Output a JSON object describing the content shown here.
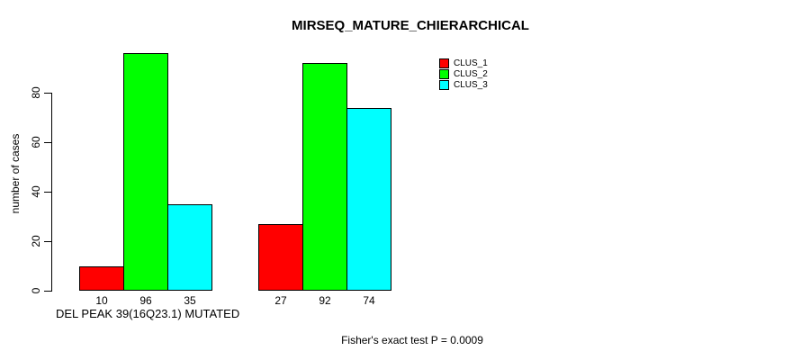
{
  "chart_data": {
    "type": "bar",
    "title": "MIRSEQ_MATURE_CHIERARCHICAL",
    "ylabel": "number of cases",
    "xlabel": "DEL PEAK 39(16Q23.1) MUTATED",
    "annotation": "Fisher's exact test P = 0.0009",
    "yticks": [
      0,
      20,
      40,
      60,
      80
    ],
    "ylim": [
      0,
      96
    ],
    "grid": false,
    "legend_position": "top-right",
    "series": [
      {
        "name": "CLUS_1",
        "color": "#ff0000",
        "values": [
          10,
          27
        ]
      },
      {
        "name": "CLUS_2",
        "color": "#00ff00",
        "values": [
          96,
          92
        ]
      },
      {
        "name": "CLUS_3",
        "color": "#00ffff",
        "values": [
          35,
          74
        ]
      }
    ],
    "bar_labels": [
      [
        "10",
        "96",
        "35"
      ],
      [
        "27",
        "92",
        "74"
      ]
    ],
    "colors": {
      "bar_border": "#000000",
      "text": "#000000",
      "background": "#ffffff"
    }
  }
}
